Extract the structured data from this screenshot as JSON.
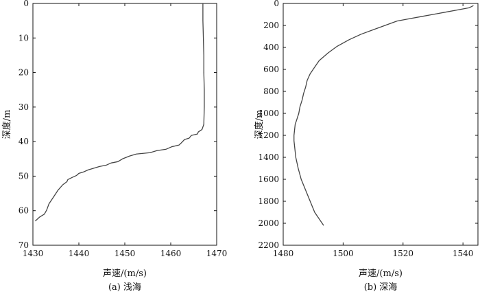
{
  "chart_data": [
    {
      "type": "line",
      "caption": "(a) 浅海",
      "xlabel": "声速/(m/s)",
      "ylabel": "深度/m",
      "xlim": [
        1430,
        1470
      ],
      "ylim": [
        0,
        70
      ],
      "y_inverted": true,
      "x_ticks": [
        1430,
        1440,
        1450,
        1460,
        1470
      ],
      "y_ticks": [
        0,
        10,
        20,
        30,
        40,
        50,
        60,
        70
      ],
      "grid": false,
      "series": [
        {
          "x": [
            1467.0,
            1467.0,
            1467.1,
            1467.2,
            1467.2,
            1467.3,
            1467.3,
            1467.2,
            1466.8,
            1466.0,
            1465.8,
            1464.5,
            1464.0,
            1463.0,
            1462.2,
            1461.8,
            1460.2,
            1459.0,
            1457.0,
            1455.5,
            1452.5,
            1451.0,
            1449.5,
            1448.5,
            1447.0,
            1446.0,
            1444.5,
            1443.5,
            1442.0,
            1441.0,
            1440.0,
            1439.5,
            1438.5,
            1437.6,
            1437.4,
            1436.5,
            1435.5,
            1434.5,
            1433.5,
            1433.0,
            1432.5,
            1431.5,
            1431.0,
            1430.5
          ],
          "y": [
            0,
            5,
            10,
            15,
            20,
            25,
            30,
            35,
            36.5,
            37.2,
            37.8,
            38.2,
            39.0,
            39.4,
            40.5,
            41.0,
            41.5,
            42.2,
            42.6,
            43.2,
            43.6,
            44.2,
            45.0,
            45.8,
            46.2,
            46.8,
            47.2,
            47.6,
            48.2,
            48.8,
            49.2,
            49.8,
            50.4,
            51.0,
            51.6,
            52.5,
            54.0,
            56.0,
            58.0,
            59.8,
            61.0,
            61.8,
            62.4,
            63.0
          ]
        }
      ]
    },
    {
      "type": "line",
      "caption": "(b) 深海",
      "xlabel": "声速/(m/s)",
      "ylabel": "深度/m",
      "xlim": [
        1480,
        1545
      ],
      "ylim": [
        0,
        2200
      ],
      "y_inverted": true,
      "x_ticks": [
        1480,
        1500,
        1520,
        1540
      ],
      "y_ticks": [
        0,
        200,
        400,
        600,
        800,
        1000,
        1200,
        1400,
        1600,
        1800,
        2000,
        2200
      ],
      "grid": false,
      "series": [
        {
          "x": [
            1543.5,
            1542.0,
            1538.0,
            1534.0,
            1530.0,
            1526.0,
            1522.0,
            1518.0,
            1514.0,
            1510.0,
            1506.0,
            1502.0,
            1498.0,
            1495.0,
            1492.0,
            1490.5,
            1489.0,
            1488.0,
            1487.5,
            1486.8,
            1486.3,
            1485.6,
            1485.2,
            1484.5,
            1484.0,
            1483.8,
            1483.6,
            1483.6,
            1483.8,
            1484.2,
            1485.0,
            1486.0,
            1487.5,
            1489.0,
            1490.5,
            1492.0,
            1493.5
          ],
          "y": [
            20,
            40,
            60,
            80,
            100,
            120,
            140,
            160,
            200,
            240,
            280,
            330,
            390,
            450,
            520,
            580,
            640,
            700,
            760,
            820,
            880,
            940,
            1000,
            1060,
            1100,
            1150,
            1200,
            1250,
            1300,
            1400,
            1500,
            1600,
            1700,
            1800,
            1900,
            1960,
            2020
          ]
        }
      ]
    }
  ]
}
